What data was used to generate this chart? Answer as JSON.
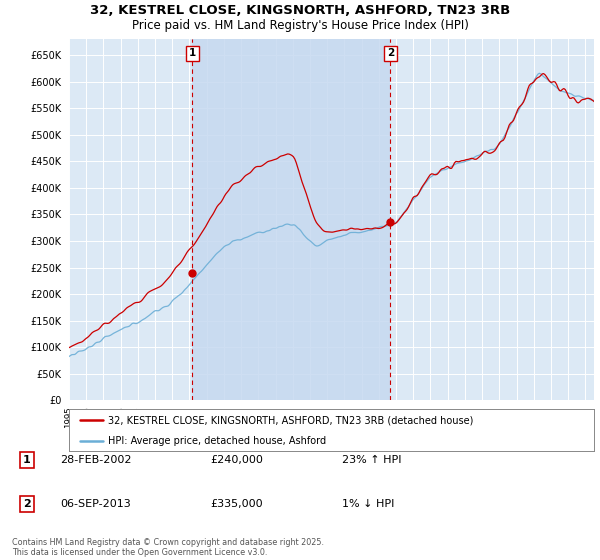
{
  "title_line1": "32, KESTREL CLOSE, KINGSNORTH, ASHFORD, TN23 3RB",
  "title_line2": "Price paid vs. HM Land Registry's House Price Index (HPI)",
  "ylim": [
    0,
    680000
  ],
  "yticks": [
    0,
    50000,
    100000,
    150000,
    200000,
    250000,
    300000,
    350000,
    400000,
    450000,
    500000,
    550000,
    600000,
    650000
  ],
  "xlim_start": 1995.0,
  "xlim_end": 2025.5,
  "bg_color": "#dce9f5",
  "grid_color": "#ffffff",
  "hpi_color": "#6baed6",
  "price_color": "#cc0000",
  "shade_color": "#c6d9f0",
  "sale1_date": 2002.163,
  "sale1_price": 240000,
  "sale2_date": 2013.676,
  "sale2_price": 335000,
  "legend_label1": "32, KESTREL CLOSE, KINGSNORTH, ASHFORD, TN23 3RB (detached house)",
  "legend_label2": "HPI: Average price, detached house, Ashford",
  "table_row1": [
    "1",
    "28-FEB-2002",
    "£240,000",
    "23% ↑ HPI"
  ],
  "table_row2": [
    "2",
    "06-SEP-2013",
    "£335,000",
    "1% ↓ HPI"
  ],
  "footnote": "Contains HM Land Registry data © Crown copyright and database right 2025.\nThis data is licensed under the Open Government Licence v3.0.",
  "title_fontsize": 9.5,
  "subtitle_fontsize": 8.5
}
